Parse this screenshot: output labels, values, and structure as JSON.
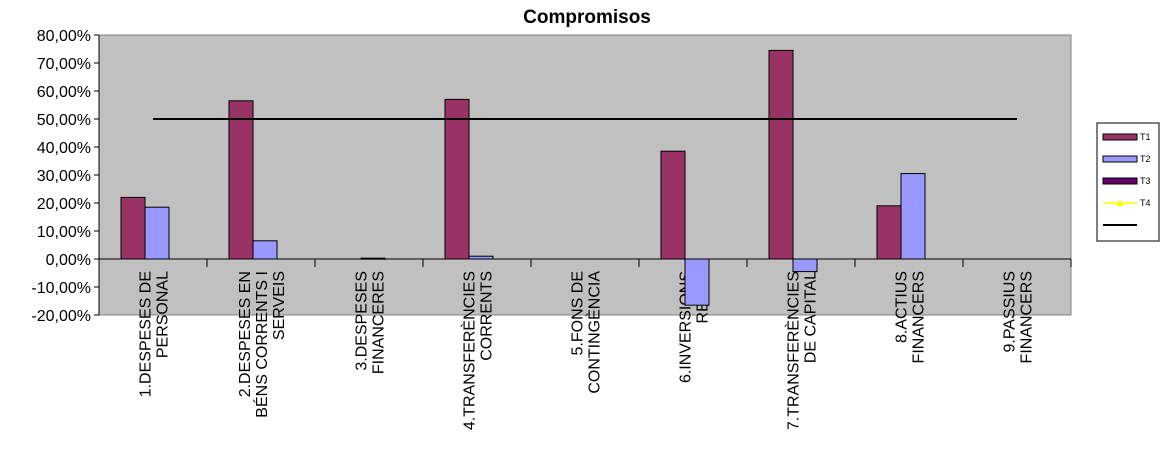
{
  "chart_data": {
    "type": "bar",
    "title": "Compromisos",
    "xlabel": "",
    "ylabel": "",
    "ylim": [
      -20,
      80
    ],
    "yticks": [
      80,
      70,
      60,
      50,
      40,
      30,
      20,
      10,
      0,
      -10,
      -20
    ],
    "ytick_labels": [
      "80,00%",
      "70,00%",
      "60,00%",
      "50,00%",
      "40,00%",
      "30,00%",
      "20,00%",
      "10,00%",
      "0,00%",
      "-10,00%",
      "-20,00%"
    ],
    "categories": [
      [
        "1.DESPESES DE",
        "PERSONAL"
      ],
      [
        "2.DESPESES EN",
        "BÉNS CORRENTS I",
        "SERVEIS"
      ],
      [
        "3.DESPESES",
        "FINANCERES"
      ],
      [
        "4.TRANSFERÈNCIES",
        "CORRENTS"
      ],
      [
        "5.FONS DE",
        "CONTINGÈNCIA"
      ],
      [
        "6.INVERSIONS",
        "REALS"
      ],
      [
        "7.TRANSFERÈNCIES",
        "DE CAPITAL"
      ],
      [
        "8.ACTIUS",
        "FINANCERS"
      ],
      [
        "9.PASSIUS",
        "FINANCERS"
      ]
    ],
    "series": [
      {
        "name": "T1",
        "color": "#993366",
        "values": [
          22,
          56.5,
          0,
          57,
          0,
          38.5,
          74.5,
          19,
          0
        ]
      },
      {
        "name": "T2",
        "color": "#9999FF",
        "values": [
          18.5,
          6.5,
          0.3,
          1,
          0,
          -16.5,
          -4.5,
          30.5,
          0
        ]
      },
      {
        "name": "T3",
        "color": "#660066",
        "values": [
          0,
          0,
          0,
          0,
          0,
          0,
          0,
          0,
          0
        ]
      },
      {
        "name": "T4",
        "color": "#FFFF00",
        "values": [
          0,
          0,
          0,
          0,
          0,
          0,
          0,
          0,
          0
        ]
      }
    ],
    "reference_line": {
      "name": "",
      "value": 50,
      "color": "#000000"
    },
    "grid": false,
    "plot_background": "#C0C0C0",
    "legend_position": "right"
  }
}
